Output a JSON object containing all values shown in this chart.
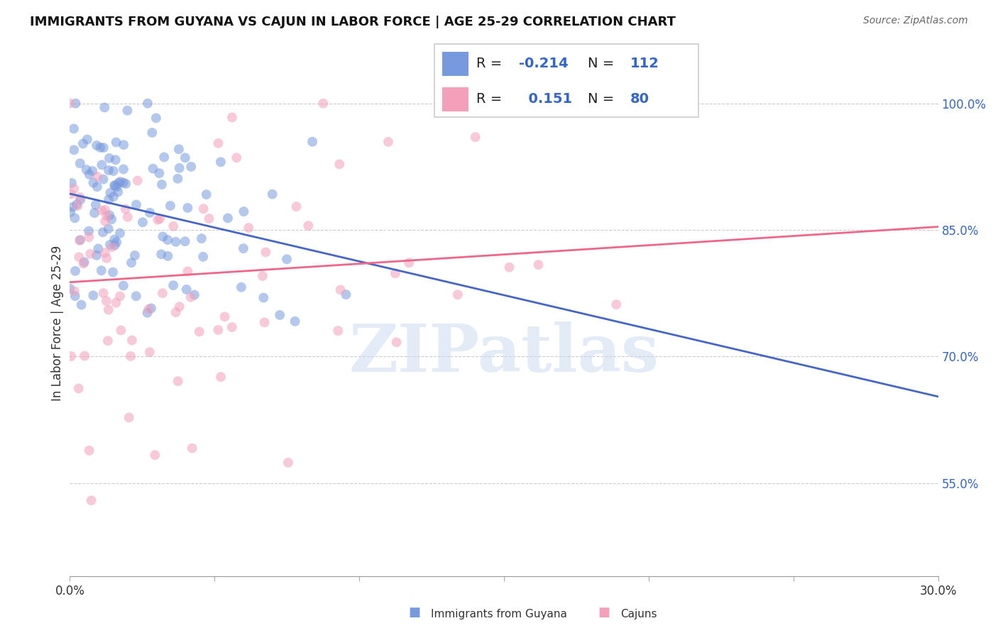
{
  "title": "IMMIGRANTS FROM GUYANA VS CAJUN IN LABOR FORCE | AGE 25-29 CORRELATION CHART",
  "source": "Source: ZipAtlas.com",
  "ylabel": "In Labor Force | Age 25-29",
  "ytick_labels": [
    "100.0%",
    "85.0%",
    "70.0%",
    "55.0%"
  ],
  "ytick_values": [
    1.0,
    0.85,
    0.7,
    0.55
  ],
  "xlim": [
    0.0,
    0.3
  ],
  "ylim": [
    0.44,
    1.04
  ],
  "watermark_text": "ZIPatlas",
  "R_blue": -0.214,
  "N_blue": 112,
  "R_pink": 0.151,
  "N_pink": 80,
  "blue_color": "#7799dd",
  "pink_color": "#f4a0bb",
  "blue_line_color": "#4466cc",
  "pink_line_color": "#ee6688",
  "background_color": "#ffffff",
  "grid_color": "#cccccc",
  "grid_linestyle": "--",
  "title_fontsize": 13,
  "source_fontsize": 10,
  "ylabel_fontsize": 12,
  "ytick_fontsize": 12,
  "xtick_fontsize": 12,
  "legend_fontsize": 14,
  "watermark_fontsize": 68,
  "watermark_color": "#c8d8f0",
  "watermark_alpha": 0.5,
  "scatter_size": 100,
  "scatter_alpha": 0.55,
  "line_width": 2.0,
  "bottom_legend_labels": [
    "Immigrants from Guyana",
    "Cajuns"
  ],
  "bottom_legend_colors": [
    "#7799dd",
    "#f4a0bb"
  ]
}
